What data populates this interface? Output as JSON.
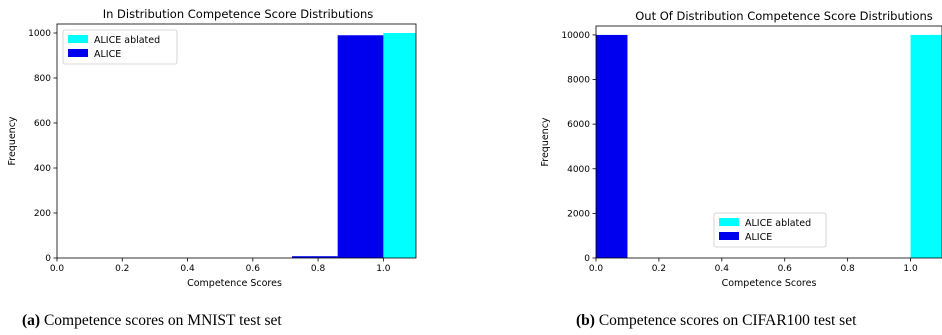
{
  "chart_data": [
    {
      "type": "bar",
      "title": "In Distribution Competence Score Distributions",
      "xlabel": "Competence Scores",
      "ylabel": "Frequency",
      "xlim": [
        0.0,
        1.1
      ],
      "ylim": [
        0,
        1040
      ],
      "xticks": [
        "0.0",
        "0.2",
        "0.4",
        "0.6",
        "0.8",
        "1.0"
      ],
      "yticks": [
        "0",
        "200",
        "400",
        "600",
        "800",
        "1000"
      ],
      "legend": "top-left",
      "series": [
        {
          "name": "ALICE ablated",
          "color": "#00ffff",
          "bins": [
            {
              "x0": 1.0,
              "x1": 1.1,
              "count": 1000
            }
          ]
        },
        {
          "name": "ALICE",
          "color": "#0000ee",
          "bins": [
            {
              "x0": 0.72,
              "x1": 0.86,
              "count": 8
            },
            {
              "x0": 0.86,
              "x1": 1.0,
              "count": 990
            }
          ]
        }
      ]
    },
    {
      "type": "bar",
      "title": "Out Of Distribution Competence Score Distributions",
      "xlabel": "Competence Scores",
      "ylabel": "Frequency",
      "xlim": [
        0.0,
        1.1
      ],
      "ylim": [
        0,
        10400
      ],
      "xticks": [
        "0.0",
        "0.2",
        "0.4",
        "0.6",
        "0.8",
        "1.0"
      ],
      "yticks": [
        "0",
        "2000",
        "4000",
        "6000",
        "8000",
        "10000"
      ],
      "legend": "lower-center",
      "series": [
        {
          "name": "ALICE ablated",
          "color": "#00ffff",
          "bins": [
            {
              "x0": 1.0,
              "x1": 1.1,
              "count": 10000
            }
          ]
        },
        {
          "name": "ALICE",
          "color": "#0000ee",
          "bins": [
            {
              "x0": 0.0,
              "x1": 0.1,
              "count": 10000
            }
          ]
        }
      ]
    }
  ],
  "captions": [
    {
      "label": "(a)",
      "text": " Competence scores on MNIST test set"
    },
    {
      "label": "(b)",
      "text": " Competence scores on CIFAR100 test set"
    }
  ]
}
